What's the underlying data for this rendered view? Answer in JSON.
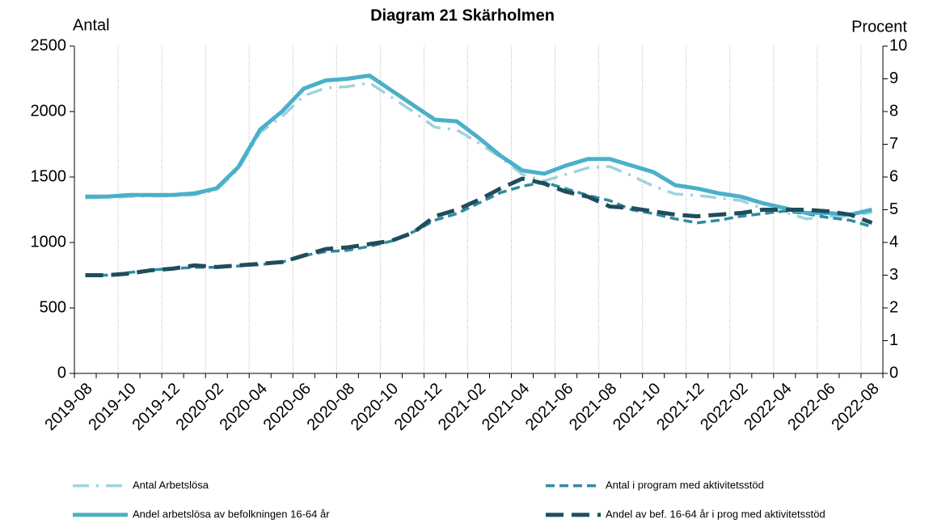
{
  "chart_data": {
    "type": "line",
    "title": "Diagram 21 Skärholmen",
    "ylabel": "Antal",
    "y2label": "Procent",
    "categories": [
      "2019-08",
      null,
      "2019-10",
      null,
      "2019-12",
      null,
      "2020-02",
      null,
      "2020-04",
      null,
      "2020-06",
      null,
      "2020-08",
      null,
      "2020-10",
      null,
      "2020-12",
      null,
      "2021-02",
      null,
      "2021-04",
      null,
      "2021-06",
      null,
      "2021-08",
      null,
      "2021-10",
      null,
      "2021-12",
      null,
      "2022-02",
      null,
      "2022-04",
      null,
      "2022-06",
      null,
      "2022-08"
    ],
    "ylim": [
      0,
      2500
    ],
    "yticks": [
      0,
      500,
      1000,
      1500,
      2000,
      2500
    ],
    "y2lim": [
      0,
      10
    ],
    "y2ticks": [
      0,
      1,
      2,
      3,
      4,
      5,
      6,
      7,
      8,
      9,
      10
    ],
    "grid": true,
    "legend": "bottom",
    "series": [
      {
        "name": "Antal Arbetslösa",
        "color": "#9fd2df",
        "style": "dash-dot",
        "values": [
          1340,
          1345,
          1350,
          1355,
          1355,
          1365,
          1400,
          1560,
          1840,
          1960,
          2120,
          2180,
          2190,
          2220,
          2110,
          2000,
          1880,
          1860,
          1760,
          1650,
          1520,
          1470,
          1520,
          1570,
          1580,
          1510,
          1430,
          1370,
          1360,
          1340,
          1320,
          1260,
          1230,
          1180,
          1200,
          1200,
          1230
        ]
      },
      {
        "name": "Antal i program med aktivitetsstöd",
        "color": "#2f8ba0",
        "style": "dashed",
        "values": [
          750,
          750,
          770,
          790,
          800,
          810,
          810,
          820,
          830,
          850,
          900,
          930,
          940,
          970,
          1010,
          1080,
          1170,
          1220,
          1300,
          1380,
          1430,
          1460,
          1410,
          1360,
          1320,
          1250,
          1220,
          1180,
          1150,
          1170,
          1200,
          1220,
          1240,
          1220,
          1190,
          1170,
          1120
        ]
      },
      {
        "name": "Andel arbetslösa av befolkningen 16-64 år",
        "color": "#4bb0c8",
        "style": "solid",
        "axis": "y2",
        "values": [
          5.4,
          5.4,
          5.45,
          5.45,
          5.45,
          5.5,
          5.65,
          6.3,
          7.45,
          8.0,
          8.7,
          8.95,
          9.0,
          9.1,
          8.65,
          8.2,
          7.75,
          7.7,
          7.2,
          6.65,
          6.2,
          6.1,
          6.35,
          6.55,
          6.55,
          6.35,
          6.15,
          5.75,
          5.65,
          5.5,
          5.4,
          5.2,
          5.05,
          4.9,
          4.9,
          4.85,
          5.0
        ]
      },
      {
        "name": "Andel av bef. 16-64 år i prog med aktivitetsstöd",
        "color": "#1f4d5c",
        "style": "long-dashed",
        "axis": "y2",
        "values": [
          3.0,
          3.0,
          3.05,
          3.15,
          3.2,
          3.3,
          3.25,
          3.3,
          3.35,
          3.4,
          3.6,
          3.8,
          3.85,
          3.95,
          4.05,
          4.3,
          4.8,
          5.0,
          5.3,
          5.65,
          5.95,
          5.8,
          5.55,
          5.4,
          5.1,
          5.05,
          4.95,
          4.85,
          4.8,
          4.85,
          4.9,
          5.0,
          5.0,
          5.0,
          4.95,
          4.85,
          4.6
        ]
      }
    ]
  }
}
